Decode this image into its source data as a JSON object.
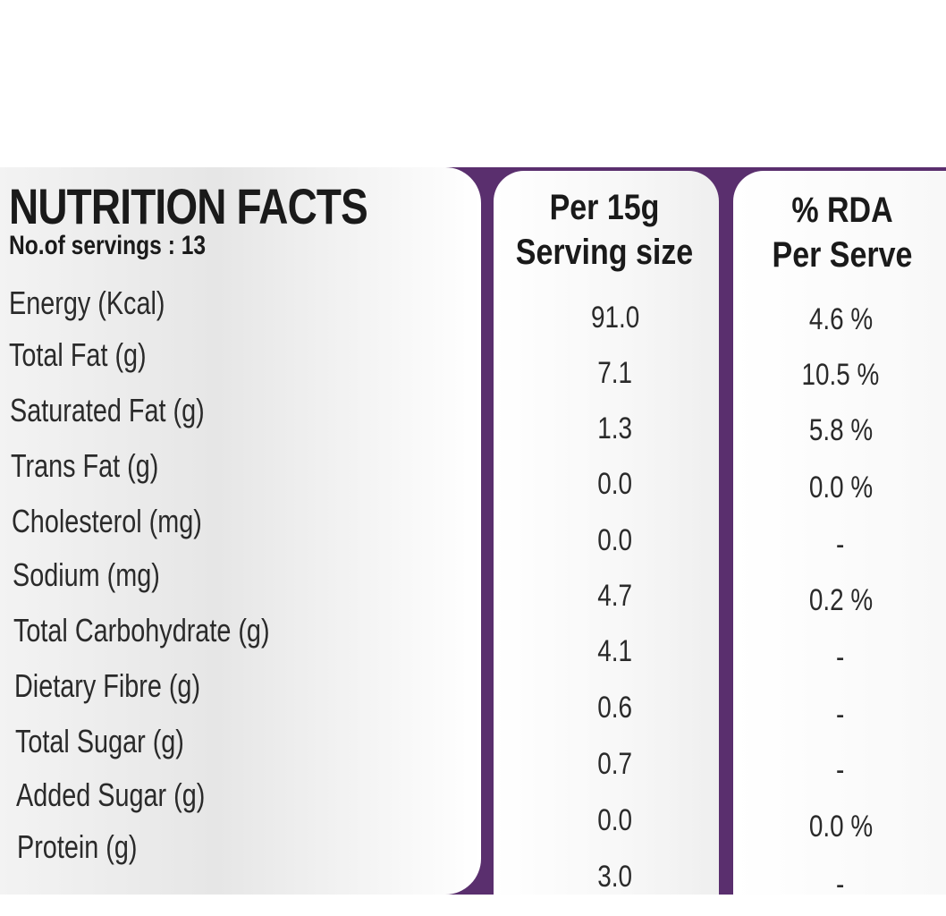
{
  "title": "NUTRITION FACTS",
  "servings": "No.of servings : 13",
  "columns": {
    "serving": [
      "Per 15g",
      "Serving size"
    ],
    "rda": [
      "% RDA",
      "Per Serve"
    ]
  },
  "rows": [
    {
      "name": "Energy (Kcal)",
      "serving": "91.0",
      "rda": "4.6 %"
    },
    {
      "name": "Total Fat (g)",
      "serving": "7.1",
      "rda": "10.5 %"
    },
    {
      "name": "Saturated Fat (g)",
      "serving": "1.3",
      "rda": "5.8 %"
    },
    {
      "name": "Trans Fat (g)",
      "serving": "0.0",
      "rda": "0.0 %"
    },
    {
      "name": "Cholesterol (mg)",
      "serving": "0.0",
      "rda": "-"
    },
    {
      "name": "Sodium (mg)",
      "serving": "4.7",
      "rda": "0.2 %"
    },
    {
      "name": "Total Carbohydrate (g)",
      "serving": "4.1",
      "rda": "-"
    },
    {
      "name": "Dietary Fibre (g)",
      "serving": "0.6",
      "rda": "-"
    },
    {
      "name": "Total Sugar (g)",
      "serving": "0.7",
      "rda": "-"
    },
    {
      "name": "Added Sugar (g)",
      "serving": "0.0",
      "rda": "0.0 %"
    },
    {
      "name": "Protein (g)",
      "serving": "3.0",
      "rda": "-"
    }
  ],
  "colors": {
    "frame": "#5a2f6e",
    "text": "#1a1a1a"
  }
}
